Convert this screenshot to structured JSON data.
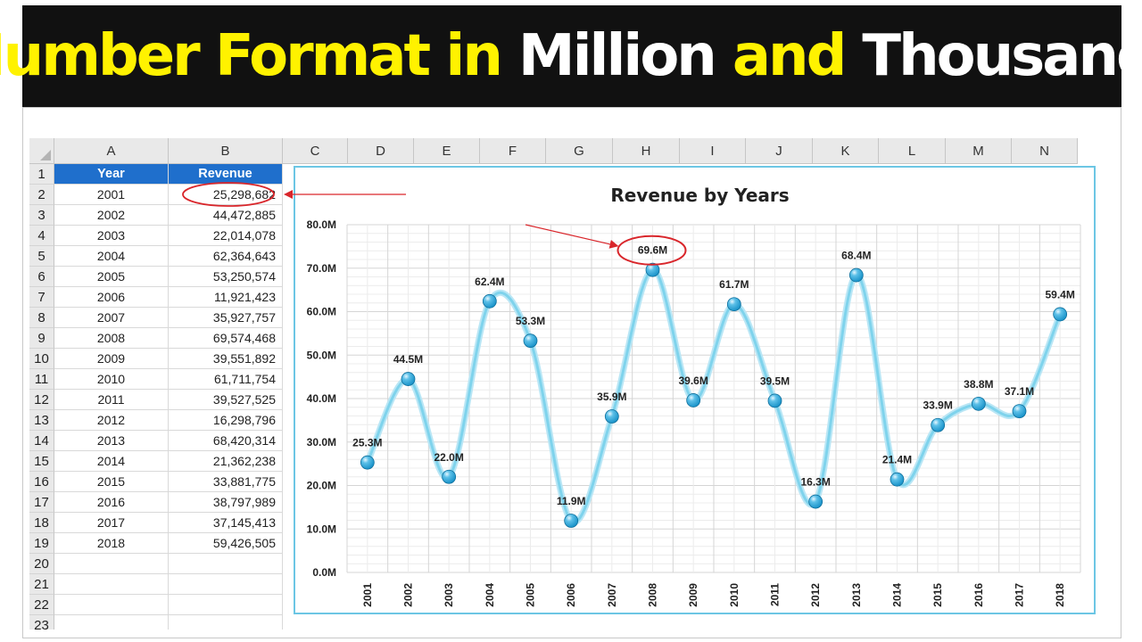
{
  "banner": {
    "segments": [
      {
        "text": "Number Format in",
        "color": "#fff200"
      },
      {
        "text": "Million",
        "color": "#ffffff"
      },
      {
        "text": "and",
        "color": "#fff200"
      },
      {
        "text": "Thousands",
        "color": "#ffffff"
      }
    ]
  },
  "sheet": {
    "columns": [
      "A",
      "B",
      "C",
      "D",
      "E",
      "F",
      "G",
      "H",
      "I",
      "J",
      "K",
      "L",
      "M",
      "N"
    ],
    "row_numbers": [
      "1",
      "2",
      "3",
      "4",
      "5",
      "6",
      "7",
      "8",
      "9",
      "10",
      "11",
      "12",
      "13",
      "14",
      "15",
      "16",
      "17",
      "18",
      "19",
      "20",
      "21",
      "22",
      "23"
    ],
    "headers": {
      "year": "Year",
      "revenue": "Revenue"
    },
    "header_color": "#1f6fcc",
    "rows": [
      {
        "year": "2001",
        "revenue": "25,298,682"
      },
      {
        "year": "2002",
        "revenue": "44,472,885"
      },
      {
        "year": "2003",
        "revenue": "22,014,078"
      },
      {
        "year": "2004",
        "revenue": "62,364,643"
      },
      {
        "year": "2005",
        "revenue": "53,250,574"
      },
      {
        "year": "2006",
        "revenue": "11,921,423"
      },
      {
        "year": "2007",
        "revenue": "35,927,757"
      },
      {
        "year": "2008",
        "revenue": "69,574,468"
      },
      {
        "year": "2009",
        "revenue": "39,551,892"
      },
      {
        "year": "2010",
        "revenue": "61,711,754"
      },
      {
        "year": "2011",
        "revenue": "39,527,525"
      },
      {
        "year": "2012",
        "revenue": "16,298,796"
      },
      {
        "year": "2013",
        "revenue": "68,420,314"
      },
      {
        "year": "2014",
        "revenue": "21,362,238"
      },
      {
        "year": "2015",
        "revenue": "33,881,775"
      },
      {
        "year": "2016",
        "revenue": "38,797,989"
      },
      {
        "year": "2017",
        "revenue": "37,145,413"
      },
      {
        "year": "2018",
        "revenue": "59,426,505"
      }
    ]
  },
  "chart_data": {
    "type": "line",
    "title": "Revenue by Years",
    "xlabel": "",
    "ylabel": "",
    "categories": [
      "2001",
      "2002",
      "2003",
      "2004",
      "2005",
      "2006",
      "2007",
      "2008",
      "2009",
      "2010",
      "2011",
      "2012",
      "2013",
      "2014",
      "2015",
      "2016",
      "2017",
      "2018"
    ],
    "values": [
      25.3,
      44.5,
      22.0,
      62.4,
      53.3,
      11.9,
      35.9,
      69.6,
      39.6,
      61.7,
      39.5,
      16.3,
      68.4,
      21.4,
      33.9,
      38.8,
      37.1,
      59.4
    ],
    "data_labels": [
      "25.3M",
      "44.5M",
      "22.0M",
      "62.4M",
      "53.3M",
      "11.9M",
      "35.9M",
      "69.6M",
      "39.6M",
      "61.7M",
      "39.5M",
      "16.3M",
      "68.4M",
      "21.4M",
      "33.9M",
      "38.8M",
      "37.1M",
      "59.4M"
    ],
    "y_ticks": [
      0,
      10,
      20,
      30,
      40,
      50,
      60,
      70,
      80
    ],
    "y_tick_labels": [
      "0.0M",
      "10.0M",
      "20.0M",
      "30.0M",
      "40.0M",
      "50.0M",
      "60.0M",
      "70.0M",
      "80.0M"
    ],
    "ylim": [
      0,
      80
    ],
    "grid": true,
    "smooth": true,
    "line_color": "#7fd3ec",
    "marker_color": "#1a93c9",
    "highlight_index": 7,
    "highlight_color": "#d9262b"
  },
  "annotations": {
    "highlighted_cell_row": 0,
    "arrow_color": "#d9262b"
  }
}
